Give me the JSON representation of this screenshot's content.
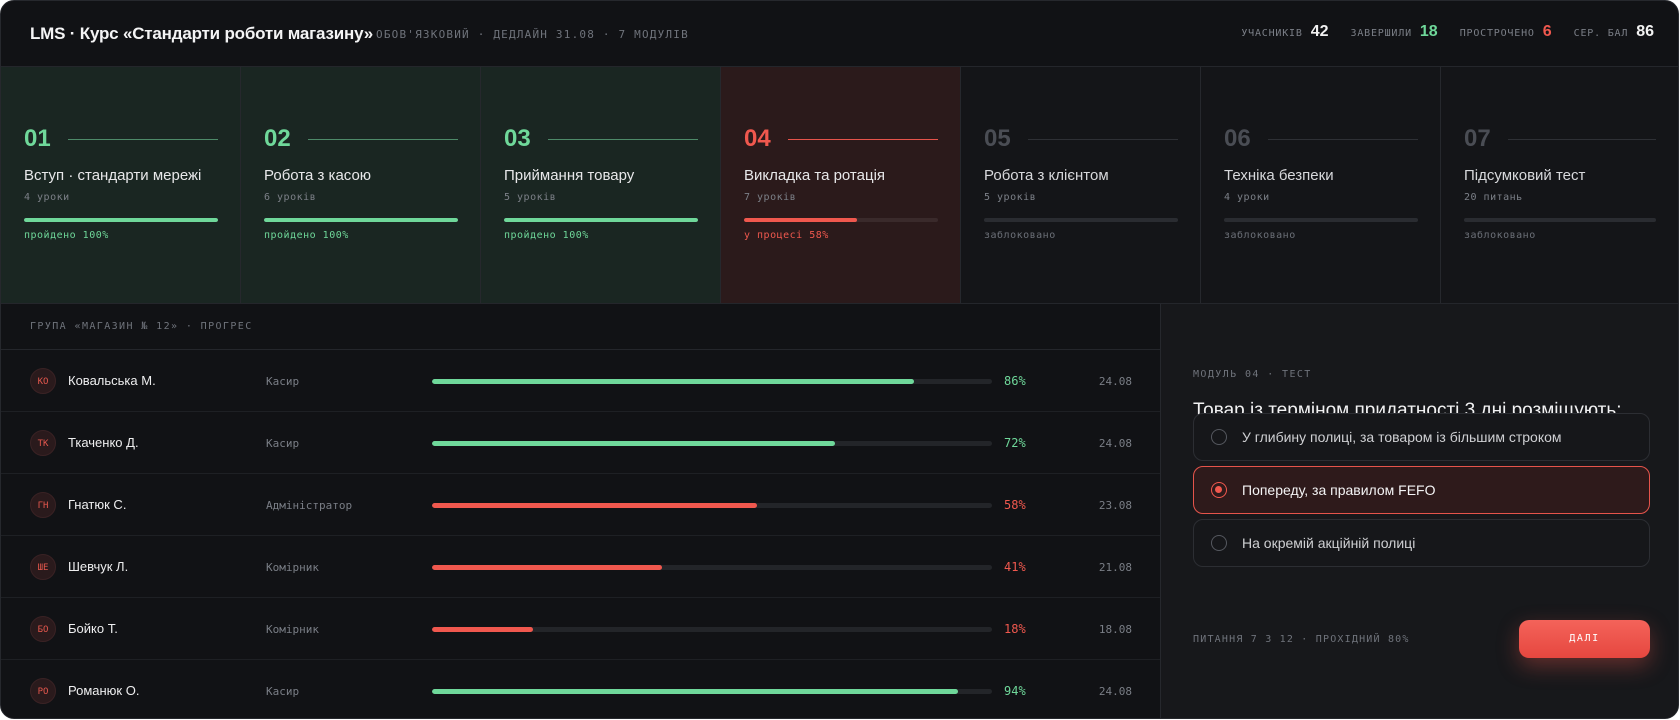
{
  "header": {
    "title": "LMS · Курс «Стандарти роботи магазину»",
    "meta": "ОБОВ'ЯЗКОВИЙ · ДЕДЛАЙН 31.08 · 7 МОДУЛІВ",
    "stats": [
      {
        "label": "УЧАСНИКІВ",
        "value": "42",
        "color": "#f2f2f2"
      },
      {
        "label": "ЗАВЕРШИЛИ",
        "value": "18",
        "color": "#6fd89a"
      },
      {
        "label": "ПРОСТРОЧЕНО",
        "value": "6",
        "color": "#f0584e"
      },
      {
        "label": "СЕР. БАЛ",
        "value": "86",
        "color": "#f2f2f2"
      }
    ]
  },
  "modules": [
    {
      "num": "01",
      "title": "Вступ · стандарти мережі",
      "sub": "4 уроки",
      "status": "пройдено 100%",
      "state": "done",
      "progress": 1.0
    },
    {
      "num": "02",
      "title": "Робота з касою",
      "sub": "6 уроків",
      "status": "пройдено 100%",
      "state": "done",
      "progress": 1.0
    },
    {
      "num": "03",
      "title": "Приймання товару",
      "sub": "5 уроків",
      "status": "пройдено 100%",
      "state": "done",
      "progress": 1.0
    },
    {
      "num": "04",
      "title": "Викладка та ротація",
      "sub": "7 уроків",
      "status": "у процесі 58%",
      "state": "progress",
      "progress": 0.58
    },
    {
      "num": "05",
      "title": "Робота з клієнтом",
      "sub": "5 уроків",
      "status": "заблоковано",
      "state": "locked",
      "progress": 0
    },
    {
      "num": "06",
      "title": "Техніка безпеки",
      "sub": "4 уроки",
      "status": "заблоковано",
      "state": "locked",
      "progress": 0
    },
    {
      "num": "07",
      "title": "Підсумковий тест",
      "sub": "20 питань",
      "status": "заблоковано",
      "state": "locked",
      "progress": 0
    }
  ],
  "group": {
    "heading": "ГРУПА «МАГАЗИН № 12» · ПРОГРЕС",
    "rows": [
      {
        "initials": "КО",
        "name": "Ковальська М.",
        "role": "Касир",
        "pct": "86%",
        "progress": 0.86,
        "date": "24.08",
        "state": "good"
      },
      {
        "initials": "ТК",
        "name": "Ткаченко Д.",
        "role": "Касир",
        "pct": "72%",
        "progress": 0.72,
        "date": "24.08",
        "state": "good"
      },
      {
        "initials": "ГН",
        "name": "Гнатюк С.",
        "role": "Адміністратор",
        "pct": "58%",
        "progress": 0.58,
        "date": "23.08",
        "state": "bad"
      },
      {
        "initials": "ШЕ",
        "name": "Шевчук Л.",
        "role": "Комірник",
        "pct": "41%",
        "progress": 0.41,
        "date": "21.08",
        "state": "bad"
      },
      {
        "initials": "БО",
        "name": "Бойко Т.",
        "role": "Комірник",
        "pct": "18%",
        "progress": 0.18,
        "date": "18.08",
        "state": "bad"
      },
      {
        "initials": "РО",
        "name": "Романюк О.",
        "role": "Касир",
        "pct": "94%",
        "progress": 0.94,
        "date": "24.08",
        "state": "good"
      }
    ]
  },
  "quiz": {
    "label": "МОДУЛЬ 04 · ТЕСТ",
    "question": "Товар із терміном придатності 3 дні розміщують:",
    "options": [
      {
        "text": "У глибину полиці, за товаром із більшим строком",
        "selected": false
      },
      {
        "text": "Попереду, за правилом FEFO",
        "selected": true
      },
      {
        "text": "На окремій акційній полиці",
        "selected": false
      }
    ],
    "footer": "ПИТАННЯ 7 З 12 · ПРОХІДНИЙ 80%",
    "next_label": "ДАЛІ"
  },
  "colors": {
    "green": "#6fd89a",
    "red": "#f0584e",
    "background": "#111215"
  }
}
